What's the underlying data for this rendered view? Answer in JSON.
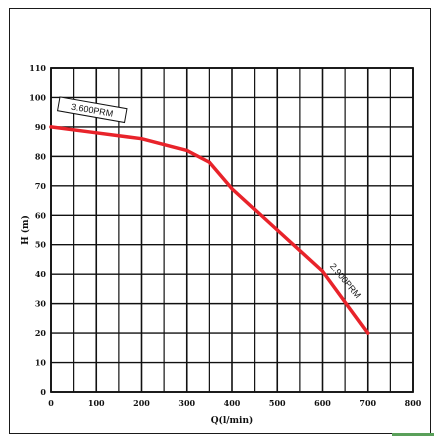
{
  "chart_data": {
    "type": "line",
    "title": "",
    "xlabel": "Q(l/min)",
    "ylabel": "H (m)",
    "xlim": [
      0,
      800
    ],
    "ylim": [
      0,
      110
    ],
    "x_ticks": [
      0,
      100,
      200,
      300,
      400,
      500,
      600,
      700,
      800
    ],
    "y_ticks": [
      0,
      10,
      20,
      30,
      40,
      50,
      60,
      70,
      80,
      90,
      100,
      110
    ],
    "grid": true,
    "series": [
      {
        "x": [
          0,
          100,
          200,
          300,
          350,
          400,
          500,
          600,
          700
        ],
        "y": [
          90,
          88,
          86,
          82,
          78,
          69,
          55,
          41,
          20
        ],
        "color": "#e8232a"
      }
    ],
    "annotations": [
      {
        "text": "3.600PRM",
        "x": 0,
        "y": 90
      },
      {
        "text": "2.900PRM",
        "x": 650,
        "y": 30
      }
    ]
  },
  "colors": {
    "series": "#e8232a",
    "grid": "#111111",
    "frame": "#1a1a1a",
    "accent": "#5aa05a"
  }
}
